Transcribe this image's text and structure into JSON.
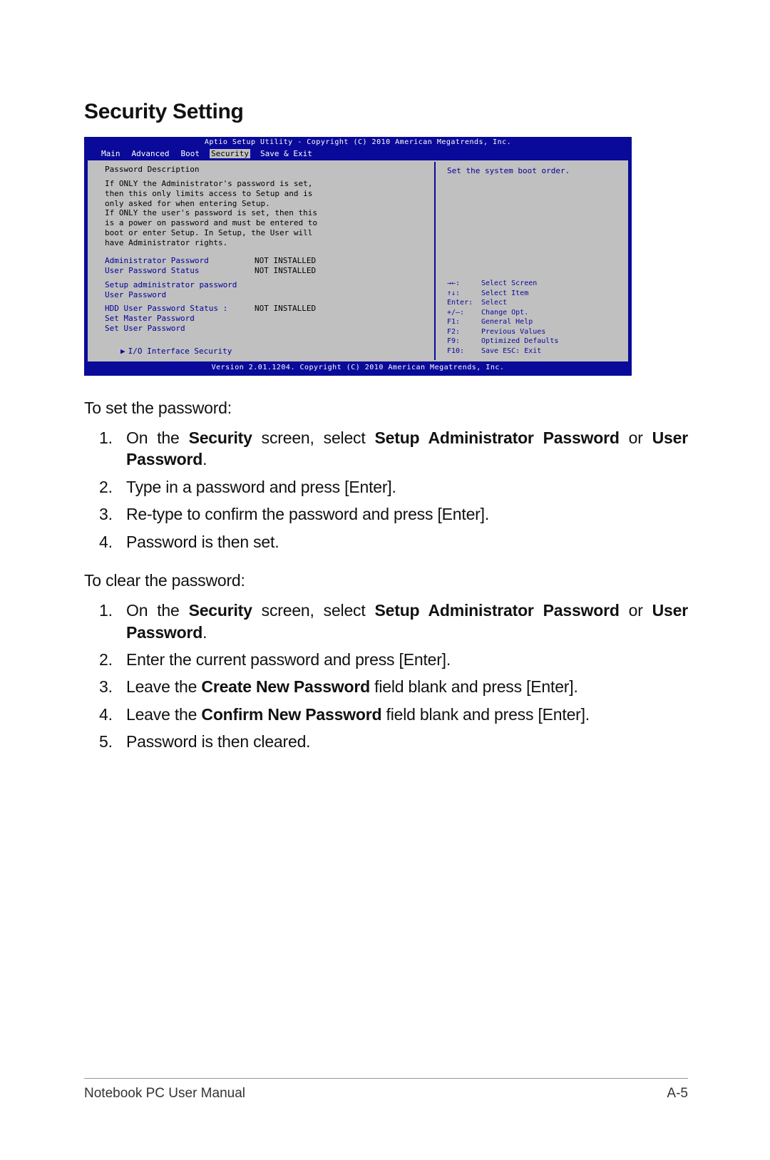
{
  "heading": "Security Setting",
  "bios": {
    "top_line": "Aptio Setup Utility - Copyright (C) 2010 American Megatrends, Inc.",
    "bottom_line": "Version 2.01.1204. Copyright (C) 2010 American Megatrends, Inc.",
    "menu": [
      "Main",
      "Advanced",
      "Boot",
      "Security",
      "Save & Exit"
    ],
    "menu_selected_index": 3,
    "left": {
      "title": "Password Description",
      "desc_lines": [
        "If ONLY the Administrator's password is set,",
        "then this only limits access to Setup and is",
        "only asked for when entering Setup.",
        "If ONLY the user's password is set, then this",
        "is a power on password and must be entered to",
        "boot or enter Setup. In Setup, the User will",
        "have Administrator rights."
      ],
      "rows1": [
        {
          "label": "Administrator Password",
          "value": "NOT INSTALLED"
        },
        {
          "label": "User Password Status",
          "value": "NOT INSTALLED"
        }
      ],
      "rows2": [
        {
          "label": "Setup administrator password",
          "value": ""
        },
        {
          "label": "User Password",
          "value": ""
        }
      ],
      "rows3": [
        {
          "label": "HDD User Password Status  :",
          "value": "NOT INSTALLED"
        },
        {
          "label": "Set Master Password",
          "value": ""
        },
        {
          "label": "Set User Password",
          "value": ""
        }
      ],
      "io_line": "I/O Interface Security"
    },
    "right": {
      "help_top": "Set the system boot order.",
      "keys": [
        {
          "k": "→←:",
          "v": "Select Screen",
          "icon": "lr"
        },
        {
          "k": "↑↓:",
          "v": "Select Item",
          "icon": "ud"
        },
        {
          "k": "Enter:",
          "v": "Select"
        },
        {
          "k": "+/—:",
          "v": "Change Opt."
        },
        {
          "k": "F1:",
          "v": "General Help"
        },
        {
          "k": "F2:",
          "v": "Previous Values"
        },
        {
          "k": "F9:",
          "v": "Optimized Defaults"
        },
        {
          "k": "F10:",
          "v": "Save   ESC:  Exit"
        }
      ]
    },
    "colors": {
      "frame_bg": "#0a0a9a",
      "panel_bg": "#c0c0c0",
      "panel_fg_blue": "#000099",
      "panel_fg_black": "#000000",
      "panel_border": "#c0c0c0"
    }
  },
  "body": {
    "set_intro": "To set the password:",
    "set_steps": [
      {
        "text": "On the <b>Security</b> screen, select <b>Setup Administrator Password</b> or <b>User Password</b>."
      },
      {
        "text": "Type in a password and press [Enter]."
      },
      {
        "text": "Re-type to confirm the password and press [Enter]."
      },
      {
        "text": "Password is then set."
      }
    ],
    "clear_intro": "To clear the password:",
    "clear_steps": [
      {
        "text": "On the <b>Security</b> screen, select <b>Setup Administrator Password</b> or <b>User Password</b>."
      },
      {
        "text": "Enter the current password and press [Enter]."
      },
      {
        "text": "Leave the <b>Create New Password</b> field blank and press [Enter]."
      },
      {
        "text": "Leave the <b>Confirm New Password</b> field blank and press [Enter]."
      },
      {
        "text": "Password is then cleared."
      }
    ]
  },
  "footer": {
    "left": "Notebook PC User Manual",
    "right": "A-5"
  }
}
